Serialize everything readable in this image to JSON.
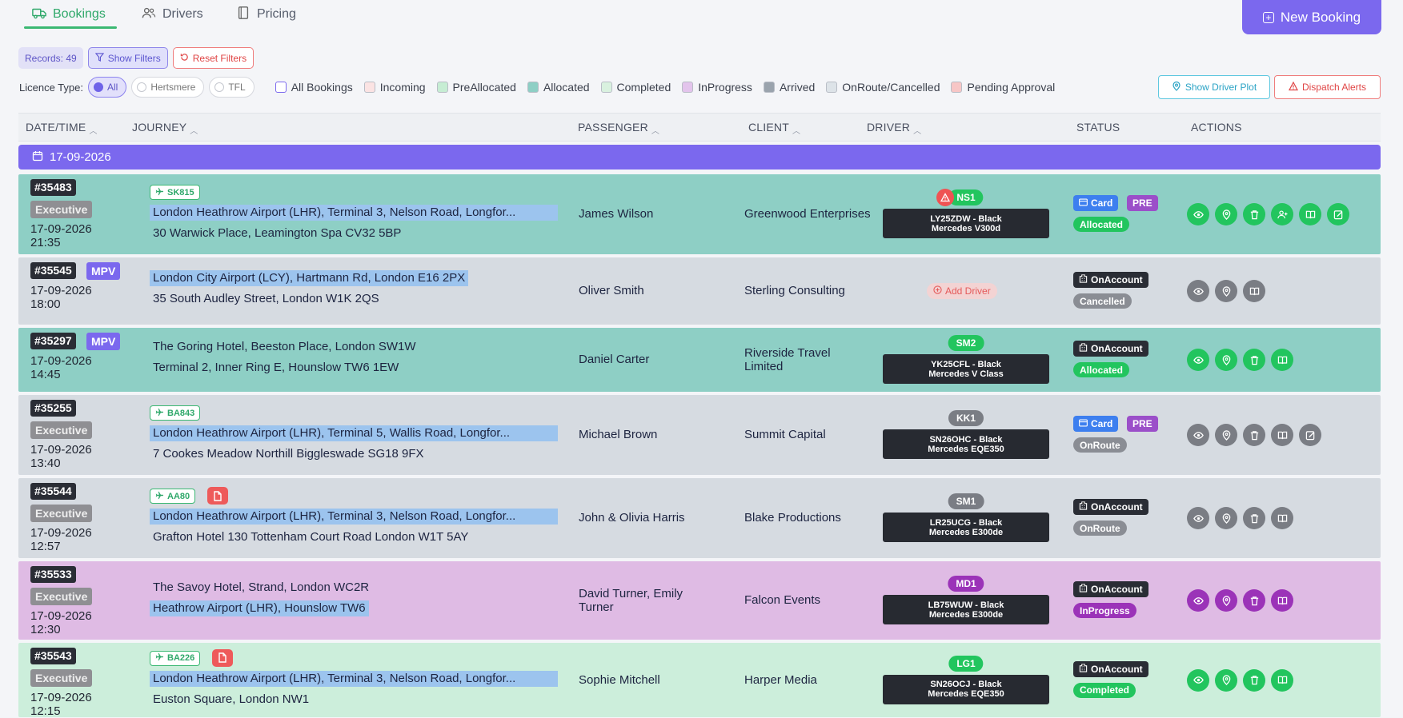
{
  "tabs": [
    {
      "label": "Bookings",
      "icon": "truck-icon",
      "active": true
    },
    {
      "label": "Drivers",
      "icon": "users-icon",
      "active": false
    },
    {
      "label": "Pricing",
      "icon": "book-icon",
      "active": false
    }
  ],
  "new_booking_label": "New Booking",
  "toolbar": {
    "records": "Records: 49",
    "show_filters": "Show Filters",
    "reset_filters": "Reset Filters"
  },
  "licence": {
    "label": "Licence Type:",
    "options": [
      "All",
      "Hertsmere",
      "TFL"
    ],
    "selected": "All"
  },
  "legend": [
    {
      "label": "All Bookings",
      "color": "#ffffff",
      "border": "#7b68ee"
    },
    {
      "label": "Incoming",
      "color": "#fbe3e3"
    },
    {
      "label": "PreAllocated",
      "color": "#c6edd3"
    },
    {
      "label": "Allocated",
      "color": "#8ecfc5"
    },
    {
      "label": "Completed",
      "color": "#d9f1df"
    },
    {
      "label": "InProgress",
      "color": "#e3c4ec"
    },
    {
      "label": "Arrived",
      "color": "#9aa3ad"
    },
    {
      "label": "OnRoute/Cancelled",
      "color": "#dde3e8"
    },
    {
      "label": "Pending Approval",
      "color": "#f7c6c6"
    }
  ],
  "show_driver_plot": "Show Driver Plot",
  "dispatch_alerts": "Dispatch Alerts",
  "columns": {
    "datetime": "DATE/TIME",
    "journey": "JOURNEY",
    "passenger": "PASSENGER",
    "client": "CLIENT",
    "driver": "DRIVER",
    "status": "STATUS",
    "actions": "ACTIONS"
  },
  "day_header": "17-09-2026",
  "rows": [
    {
      "id": "#35483",
      "vehicle": "Executive",
      "date": "17-09-2026",
      "time": "21:35",
      "flight": "SK815",
      "pickup": "London Heathrow Airport (LHR), Terminal 3, Nelson Road, Longfor...",
      "dropoff": "30 Warwick Place, Leamington Spa CV32 5BP",
      "passenger": "James Wilson",
      "client": "Greenwood Enterprises",
      "driver_code": "NS1",
      "car_line1": "LY25ZDW - Black",
      "car_line2": "Mercedes V300d",
      "payment": "Card",
      "pre": "PRE",
      "status": "Allocated"
    },
    {
      "id": "#35545",
      "vehicle": "MPV",
      "date": "17-09-2026",
      "time": "18:00",
      "pickup": "London City Airport (LCY), Hartmann Rd, London E16 2PX",
      "dropoff": "35 South Audley Street, London W1K 2QS",
      "passenger": "Oliver Smith",
      "client": "Sterling Consulting",
      "add_driver": "Add Driver",
      "payment": "OnAccount",
      "status": "Cancelled"
    },
    {
      "id": "#35297",
      "vehicle": "MPV",
      "date": "17-09-2026",
      "time": "14:45",
      "pickup": "The Goring Hotel, Beeston Place, London  SW1W",
      "dropoff": "Terminal 2, Inner Ring E, Hounslow TW6 1EW",
      "passenger": "Daniel Carter",
      "client_line1": "Riverside Travel",
      "client_line2": "Limited",
      "driver_code": "SM2",
      "car_line1": "YK25CFL - Black",
      "car_line2": "Mercedes V Class",
      "payment": "OnAccount",
      "status": "Allocated"
    },
    {
      "id": "#35255",
      "vehicle": "Executive",
      "date": "17-09-2026",
      "time": "13:40",
      "flight": "BA843",
      "pickup": "London Heathrow Airport (LHR), Terminal 5, Wallis Road, Longfor...",
      "dropoff": "7 Cookes Meadow Northill Biggleswade SG18 9FX",
      "passenger": "Michael Brown",
      "client": "Summit Capital",
      "driver_code": "KK1",
      "car_line1": "SN26OHC - Black",
      "car_line2": "Mercedes EQE350",
      "payment": "Card",
      "pre": "PRE",
      "status": "OnRoute"
    },
    {
      "id": "#35544",
      "vehicle": "Executive",
      "date": "17-09-2026",
      "time": "12:57",
      "flight": "AA80",
      "pickup": "London Heathrow Airport (LHR), Terminal 3, Nelson Road, Longfor...",
      "dropoff": "Grafton Hotel 130 Tottenham Court Road London W1T 5AY",
      "passenger": "John & Olivia Harris",
      "client": "Blake Productions",
      "driver_code": "SM1",
      "car_line1": "LR25UCG - Black",
      "car_line2": "Mercedes E300de",
      "payment": "OnAccount",
      "status": "OnRoute"
    },
    {
      "id": "#35533",
      "vehicle": "Executive",
      "date": "17-09-2026",
      "time": "12:30",
      "pickup": "The Savoy Hotel, Strand, London  WC2R",
      "dropoff": "Heathrow Airport (LHR), Hounslow  TW6",
      "passenger_line1": "David Turner, Emily",
      "passenger_line2": "Turner",
      "client": "Falcon Events",
      "driver_code": "MD1",
      "car_line1": "LB75WUW - Black",
      "car_line2": "Mercedes E300de",
      "payment": "OnAccount",
      "status": "InProgress"
    },
    {
      "id": "#35543",
      "vehicle": "Executive",
      "date": "17-09-2026",
      "time": "12:15",
      "flight": "BA226",
      "pickup": "London Heathrow Airport (LHR), Terminal 3, Nelson Road, Longfor...",
      "dropoff": "Euston Square, London  NW1",
      "passenger": "Sophie Mitchell",
      "client": "Harper Media",
      "driver_code": "LG1",
      "car_line1": "SN26OCJ - Black",
      "car_line2": "Mercedes EQE350",
      "payment": "OnAccount",
      "status": "Completed"
    }
  ]
}
